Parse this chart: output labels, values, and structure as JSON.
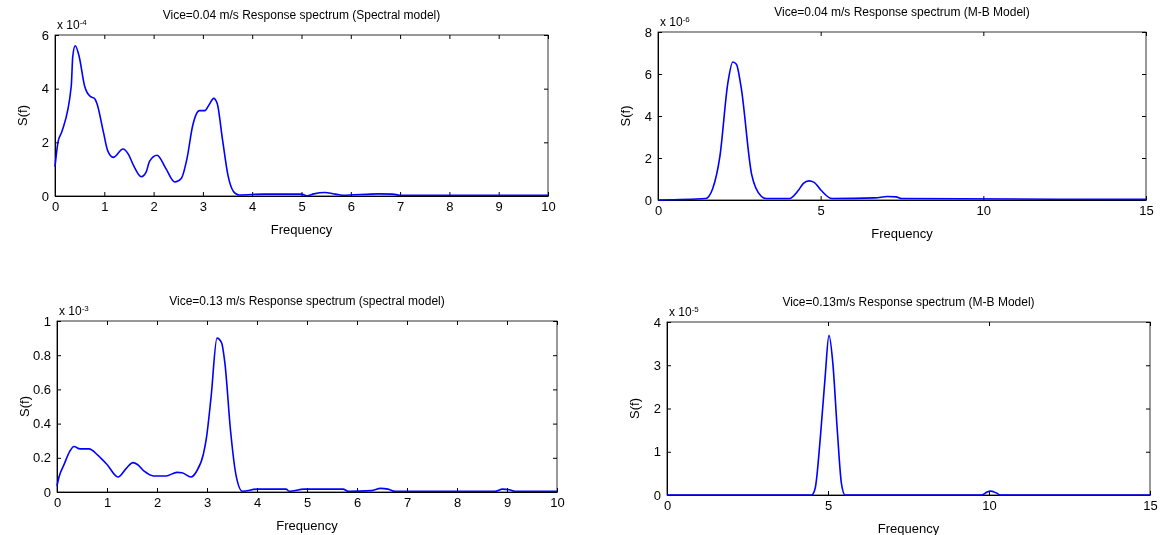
{
  "chart_data": [
    {
      "type": "line",
      "title": "Vice=0.04 m/s Response spectrum (Spectral model)",
      "xlabel": "Frequency",
      "ylabel": "S(f)",
      "annotations": [
        "x 10$^{-4}$"
      ],
      "xlim": [
        0,
        10
      ],
      "xticks": [
        0,
        1,
        2,
        3,
        4,
        5,
        6,
        7,
        8,
        9,
        10
      ],
      "ylim": [
        0,
        6
      ],
      "yticks": [
        0,
        2,
        4,
        6
      ],
      "grid": false,
      "color": "#0000ff",
      "x": [
        0,
        0.06,
        0.14,
        0.33,
        0.36,
        0.41,
        0.49,
        0.6,
        0.72,
        0.8,
        0.85,
        0.98,
        1.07,
        1.18,
        1.38,
        1.49,
        1.59,
        1.75,
        1.85,
        1.92,
        2.07,
        2.25,
        2.43,
        2.56,
        2.68,
        2.79,
        2.93,
        3.04,
        3.12,
        3.22,
        3.29,
        3.4,
        3.51,
        3.62,
        3.73,
        4.24,
        5.0,
        5.11,
        5.25,
        5.47,
        5.69,
        5.83,
        6.56,
        6.85,
        6.99,
        10
      ],
      "values": [
        1.09,
        2.0,
        2.4,
        4.1,
        5.2,
        5.6,
        5.2,
        4.1,
        3.7,
        3.64,
        3.45,
        2.4,
        1.68,
        1.44,
        1.75,
        1.55,
        1.15,
        0.72,
        0.9,
        1.3,
        1.52,
        1.02,
        0.52,
        0.65,
        1.42,
        2.6,
        3.18,
        3.18,
        3.38,
        3.64,
        3.45,
        2.07,
        0.76,
        0.17,
        0.04,
        0.07,
        0.07,
        0.01,
        0.08,
        0.13,
        0.07,
        0.03,
        0.08,
        0.07,
        0.03,
        0.03
      ]
    },
    {
      "type": "line",
      "title": "Vice=0.04 m/s Response spectrum (M-B Model)",
      "xlabel": "Frequency",
      "ylabel": "S(f)",
      "annotations": [
        "x 10$^{-6}$"
      ],
      "xlim": [
        0,
        15
      ],
      "xticks": [
        0,
        5,
        10,
        15
      ],
      "ylim": [
        0,
        8
      ],
      "yticks": [
        0,
        2,
        4,
        6,
        8
      ],
      "grid": false,
      "color": "#0000ff",
      "x": [
        0,
        1.46,
        1.68,
        1.9,
        2.15,
        2.3,
        2.41,
        2.55,
        2.88,
        3.16,
        3.32,
        4.04,
        4.31,
        4.47,
        4.64,
        4.8,
        5.02,
        5.35,
        6.67,
        7.05,
        7.32,
        7.49,
        15
      ],
      "values": [
        0,
        0.07,
        0.54,
        2.05,
        5.6,
        6.57,
        6.46,
        5.42,
        1.21,
        0.2,
        0.07,
        0.07,
        0.45,
        0.79,
        0.91,
        0.84,
        0.45,
        0.07,
        0.1,
        0.17,
        0.15,
        0.07,
        0.03
      ]
    },
    {
      "type": "line",
      "title": "Vice=0.13 m/s Response spectrum (spectral model)",
      "xlabel": "Frequency",
      "ylabel": "S(f)",
      "annotations": [
        "x 10$^{-3}$"
      ],
      "xlim": [
        0,
        10
      ],
      "xticks": [
        0,
        1,
        2,
        3,
        4,
        5,
        6,
        7,
        8,
        9,
        10
      ],
      "ylim": [
        0,
        1
      ],
      "yticks": [
        0,
        0.2,
        0.4,
        0.6,
        0.8,
        1
      ],
      "grid": false,
      "color": "#0000ff",
      "x": [
        0,
        0.04,
        0.14,
        0.25,
        0.34,
        0.46,
        0.64,
        0.82,
        1.0,
        1.22,
        1.39,
        1.52,
        1.61,
        1.75,
        1.93,
        2.18,
        2.4,
        2.5,
        2.68,
        2.79,
        2.93,
        2.99,
        3.08,
        3.2,
        3.29,
        3.36,
        3.47,
        3.58,
        3.71,
        4.01,
        4.58,
        4.65,
        4.94,
        5.72,
        5.83,
        6.29,
        6.47,
        6.62,
        6.76,
        8.76,
        8.91,
        9.05,
        9.16,
        10
      ],
      "values": [
        0.036,
        0.088,
        0.16,
        0.235,
        0.266,
        0.252,
        0.252,
        0.214,
        0.161,
        0.088,
        0.14,
        0.172,
        0.161,
        0.12,
        0.094,
        0.094,
        0.115,
        0.113,
        0.088,
        0.12,
        0.224,
        0.319,
        0.55,
        0.9,
        0.874,
        0.748,
        0.361,
        0.099,
        0.004,
        0.017,
        0.017,
        0.004,
        0.017,
        0.017,
        0.004,
        0.008,
        0.021,
        0.017,
        0.004,
        0.004,
        0.017,
        0.013,
        0.004,
        0.004
      ]
    },
    {
      "type": "line",
      "title": "Vice=0.13m/s Response spectrum (M-B Model)",
      "xlabel": "Frequency",
      "ylabel": "S(f)",
      "annotations": [
        "x 10$^{-5}$"
      ],
      "xlim": [
        0,
        15
      ],
      "xticks": [
        0,
        5,
        10,
        15
      ],
      "ylim": [
        0,
        4
      ],
      "yticks": [
        0,
        1,
        2,
        3,
        4
      ],
      "grid": false,
      "color": "#0000ff",
      "x": [
        0,
        4.49,
        4.6,
        4.76,
        4.91,
        5.03,
        5.15,
        5.29,
        5.42,
        5.53,
        9.78,
        9.94,
        10.05,
        10.22,
        10.36,
        15
      ],
      "values": [
        0,
        0,
        0.15,
        1.31,
        2.72,
        3.69,
        3.05,
        1.48,
        0.25,
        0,
        0,
        0.07,
        0.09,
        0.05,
        0,
        0
      ]
    }
  ]
}
